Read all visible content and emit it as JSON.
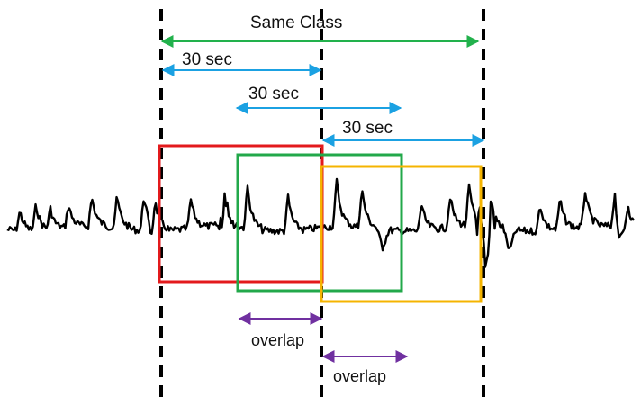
{
  "labels": {
    "same_class": "Same Class",
    "window_1": "30 sec",
    "window_2": "30 sec",
    "window_3": "30 sec",
    "overlap_1": "overlap",
    "overlap_2": "overlap"
  },
  "colors": {
    "same_class_arrow": "#22b14c",
    "window_arrow": "#1ba1e2",
    "overlap_arrow": "#7030a0",
    "box_red": "#e31a1c",
    "box_green": "#22a84a",
    "box_yellow": "#f5b400",
    "signal": "#000000",
    "divider": "#000000"
  }
}
